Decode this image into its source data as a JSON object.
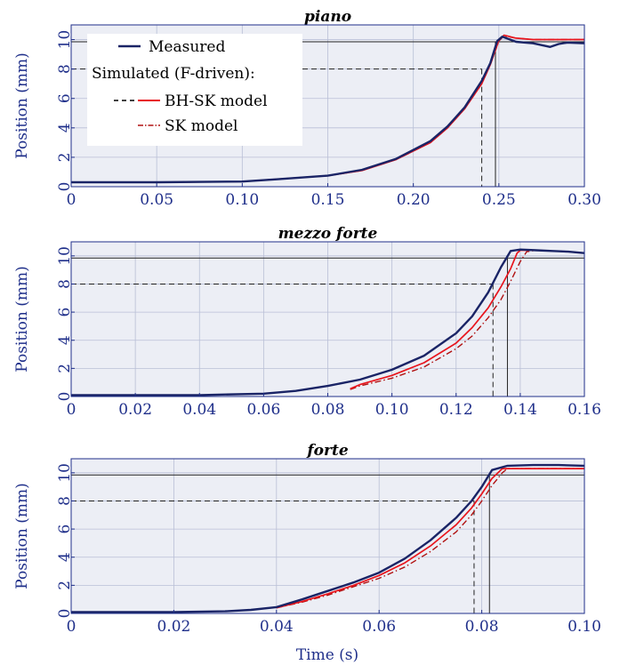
{
  "figure": {
    "xlabel": "Time (s)",
    "ylabel": "Position (mm)"
  },
  "legend": {
    "items": [
      {
        "label": "Measured",
        "color": "#1a2466",
        "style": "solid"
      },
      {
        "label": "Simulated (F-driven):",
        "color": "#000000",
        "style": "none"
      },
      {
        "label": "BH-SK model",
        "color": "#000000",
        "style": "dashed-to-red"
      },
      {
        "label": "SK model",
        "color": "#b01010",
        "style": "dashdot"
      }
    ]
  },
  "colors": {
    "measured": "#1a2466",
    "bhsk": "#e8141c",
    "sk": "#b01010",
    "grid": "#b9bfd6",
    "panel_bg": "#eceef5",
    "axis": "#1f2f8a"
  },
  "chart_data": [
    {
      "type": "line",
      "title": "piano",
      "xlim": [
        0,
        0.3
      ],
      "ylim": [
        0,
        11
      ],
      "xticks": [
        0,
        0.05,
        0.1,
        0.15,
        0.2,
        0.25,
        0.3
      ],
      "xtick_labels": [
        "0",
        "0.05",
        "0.10",
        "0.15",
        "0.20",
        "0.25",
        "0.30"
      ],
      "yticks": [
        0,
        2,
        4,
        6,
        8,
        10
      ],
      "ytick_labels": [
        "0",
        "2",
        "4",
        "6",
        "8",
        "10"
      ],
      "hline_solid": 9.85,
      "hline_dashed": 8.0,
      "vline_solid": 0.248,
      "vline_dashed": 0.24,
      "series": [
        {
          "name": "Measured",
          "x": [
            0,
            0.05,
            0.1,
            0.12,
            0.15,
            0.17,
            0.19,
            0.21,
            0.22,
            0.23,
            0.24,
            0.245,
            0.249,
            0.252,
            0.26,
            0.27,
            0.28,
            0.285,
            0.29,
            0.3
          ],
          "y": [
            0.3,
            0.3,
            0.35,
            0.5,
            0.75,
            1.15,
            1.9,
            3.1,
            4.1,
            5.4,
            7.2,
            8.4,
            9.9,
            10.2,
            9.85,
            9.75,
            9.5,
            9.7,
            9.8,
            9.75
          ]
        },
        {
          "name": "BH-SK model",
          "x": [
            0,
            0.05,
            0.1,
            0.15,
            0.17,
            0.19,
            0.21,
            0.22,
            0.23,
            0.24,
            0.245,
            0.25,
            0.253,
            0.26,
            0.27,
            0.28,
            0.3
          ],
          "y": [
            0.3,
            0.3,
            0.35,
            0.75,
            1.1,
            1.85,
            3.0,
            4.0,
            5.3,
            7.0,
            8.3,
            9.95,
            10.3,
            10.1,
            10.0,
            10.0,
            10.0
          ]
        },
        {
          "name": "SK model",
          "x": [
            0,
            0.05,
            0.1,
            0.15,
            0.17,
            0.19,
            0.21,
            0.22,
            0.23,
            0.24,
            0.245,
            0.25,
            0.253,
            0.26,
            0.27,
            0.28,
            0.3
          ],
          "y": [
            0.3,
            0.3,
            0.35,
            0.75,
            1.1,
            1.85,
            3.0,
            4.0,
            5.3,
            7.0,
            8.3,
            9.9,
            10.25,
            10.1,
            10.0,
            10.0,
            10.0
          ]
        }
      ]
    },
    {
      "type": "line",
      "title": "mezzo forte",
      "xlim": [
        0,
        0.16
      ],
      "ylim": [
        0,
        11
      ],
      "xticks": [
        0,
        0.02,
        0.04,
        0.06,
        0.08,
        0.1,
        0.12,
        0.14,
        0.16
      ],
      "xtick_labels": [
        "0",
        "0.02",
        "0.04",
        "0.06",
        "0.08",
        "0.10",
        "0.12",
        "0.14",
        "0.16"
      ],
      "yticks": [
        0,
        2,
        4,
        6,
        8,
        10
      ],
      "ytick_labels": [
        "0",
        "2",
        "4",
        "6",
        "8",
        "10"
      ],
      "hline_solid": 9.85,
      "hline_dashed": 8.0,
      "vline_solid": 0.136,
      "vline_dashed": 0.1315,
      "series": [
        {
          "name": "Measured",
          "x": [
            0,
            0.04,
            0.06,
            0.07,
            0.08,
            0.09,
            0.1,
            0.11,
            0.12,
            0.125,
            0.13,
            0.134,
            0.137,
            0.14,
            0.145,
            0.15,
            0.155,
            0.16
          ],
          "y": [
            0.1,
            0.1,
            0.2,
            0.4,
            0.75,
            1.2,
            1.9,
            2.9,
            4.5,
            5.7,
            7.4,
            9.2,
            10.35,
            10.45,
            10.4,
            10.35,
            10.3,
            10.2
          ]
        },
        {
          "name": "BH-SK model",
          "x": [
            0.087,
            0.09,
            0.1,
            0.11,
            0.12,
            0.125,
            0.13,
            0.134,
            0.137,
            0.139,
            0.14,
            0.145,
            0.15,
            0.155,
            0.16
          ],
          "y": [
            0.55,
            0.85,
            1.5,
            2.4,
            3.8,
            4.9,
            6.3,
            7.8,
            9.1,
            10.2,
            10.4,
            10.4,
            10.35,
            10.3,
            10.2
          ]
        },
        {
          "name": "SK model",
          "x": [
            0.087,
            0.09,
            0.1,
            0.11,
            0.12,
            0.125,
            0.13,
            0.134,
            0.137,
            0.14,
            0.142,
            0.145,
            0.15,
            0.155,
            0.16
          ],
          "y": [
            0.5,
            0.75,
            1.3,
            2.1,
            3.4,
            4.3,
            5.6,
            6.9,
            8.2,
            9.6,
            10.3,
            10.4,
            10.35,
            10.3,
            10.2
          ]
        }
      ]
    },
    {
      "type": "line",
      "title": "forte",
      "xlim": [
        0,
        0.1
      ],
      "ylim": [
        0,
        11
      ],
      "xticks": [
        0,
        0.02,
        0.04,
        0.06,
        0.08,
        0.1
      ],
      "xtick_labels": [
        "0",
        "0.02",
        "0.04",
        "0.06",
        "0.08",
        "0.10"
      ],
      "yticks": [
        0,
        2,
        4,
        6,
        8,
        10
      ],
      "ytick_labels": [
        "0",
        "2",
        "4",
        "6",
        "8",
        "10"
      ],
      "hline_solid": 9.85,
      "hline_dashed": 8.0,
      "vline_solid": 0.0815,
      "vline_dashed": 0.0785,
      "series": [
        {
          "name": "Measured",
          "x": [
            0,
            0.02,
            0.03,
            0.035,
            0.04,
            0.045,
            0.05,
            0.055,
            0.06,
            0.065,
            0.07,
            0.075,
            0.078,
            0.08,
            0.082,
            0.085,
            0.09,
            0.095,
            0.1
          ],
          "y": [
            0.1,
            0.1,
            0.15,
            0.25,
            0.45,
            1.0,
            1.6,
            2.2,
            2.9,
            3.9,
            5.2,
            6.8,
            8.0,
            9.0,
            10.2,
            10.5,
            10.55,
            10.55,
            10.5
          ]
        },
        {
          "name": "BH-SK model",
          "x": [
            0.04,
            0.045,
            0.05,
            0.055,
            0.06,
            0.065,
            0.07,
            0.075,
            0.078,
            0.08,
            0.082,
            0.084,
            0.09,
            0.1
          ],
          "y": [
            0.4,
            0.85,
            1.4,
            2.0,
            2.7,
            3.6,
            4.8,
            6.3,
            7.5,
            8.5,
            9.6,
            10.3,
            10.3,
            10.3
          ]
        },
        {
          "name": "SK model",
          "x": [
            0.04,
            0.045,
            0.05,
            0.055,
            0.06,
            0.065,
            0.07,
            0.075,
            0.078,
            0.08,
            0.082,
            0.084,
            0.085,
            0.09,
            0.1
          ],
          "y": [
            0.4,
            0.8,
            1.3,
            1.9,
            2.5,
            3.3,
            4.4,
            5.8,
            7.0,
            8.0,
            9.1,
            10.0,
            10.3,
            10.3,
            10.3
          ]
        }
      ]
    }
  ]
}
